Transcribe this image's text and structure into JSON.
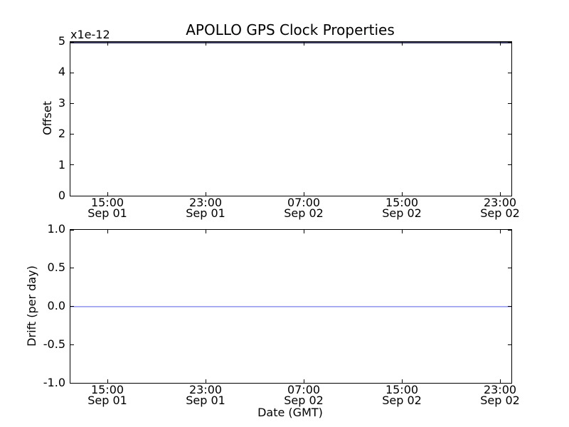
{
  "colors": {
    "background": "#ffffff",
    "axis": "#000000",
    "offset_line": "#3a3a5e",
    "drift_line": "#a4aaf2"
  },
  "chart_data": [
    {
      "id": "offset-plot",
      "type": "line",
      "title": "APOLLO GPS Clock Properties",
      "ylabel": "Offset",
      "y_offset_text": "x1e-12",
      "ylim": [
        0,
        5
      ],
      "y_tick_labels": [
        "5",
        "4",
        "3",
        "2",
        "1",
        "0"
      ],
      "x_tick_labels": [
        {
          "time": "15:00",
          "date": "Sep 01"
        },
        {
          "time": "23:00",
          "date": "Sep 01"
        },
        {
          "time": "07:00",
          "date": "Sep 02"
        },
        {
          "time": "15:00",
          "date": "Sep 02"
        },
        {
          "time": "23:00",
          "date": "Sep 02"
        }
      ],
      "grid": false,
      "legend": false,
      "series": [
        {
          "name": "offset",
          "color": "#3a3a5e",
          "constant_value": 5,
          "value_units": "x1e-12",
          "description": "flat horizontal line along the top edge of the axes (y = 5e-12)"
        }
      ]
    },
    {
      "id": "drift-plot",
      "type": "line",
      "title": "",
      "ylabel": "Drift (per day)",
      "xlabel": "Date (GMT)",
      "ylim": [
        -1.0,
        1.0
      ],
      "y_tick_labels": [
        "1.0",
        "0.5",
        "0.0",
        "-0.5",
        "-1.0"
      ],
      "x_tick_labels": [
        {
          "time": "15:00",
          "date": "Sep 01"
        },
        {
          "time": "23:00",
          "date": "Sep 01"
        },
        {
          "time": "07:00",
          "date": "Sep 02"
        },
        {
          "time": "15:00",
          "date": "Sep 02"
        },
        {
          "time": "23:00",
          "date": "Sep 02"
        }
      ],
      "grid": false,
      "legend": false,
      "series": [
        {
          "name": "drift",
          "color": "#a4aaf2",
          "constant_value": 0.0,
          "description": "flat horizontal line at y = 0.0 spanning the full axis width"
        }
      ]
    }
  ]
}
